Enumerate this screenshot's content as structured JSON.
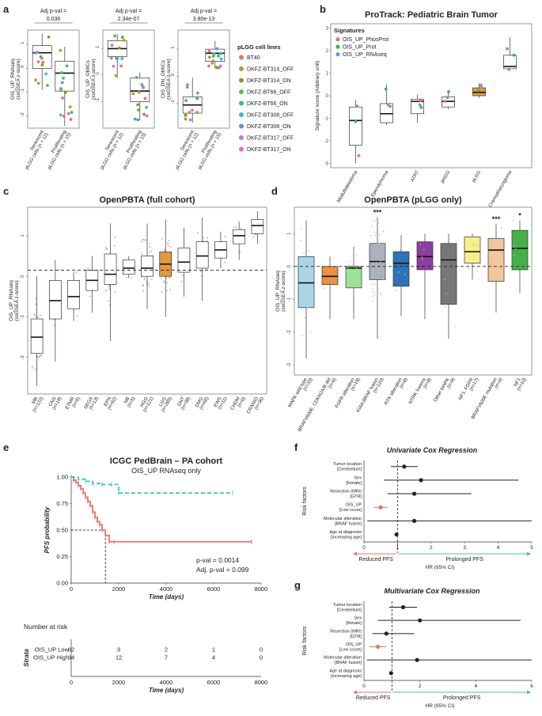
{
  "panels": {
    "a": {
      "label": "a"
    },
    "b": {
      "label": "b"
    },
    "c": {
      "label": "c"
    },
    "d": {
      "label": "d"
    },
    "e": {
      "label": "e"
    },
    "f": {
      "label": "f"
    },
    "g": {
      "label": "g"
    }
  },
  "colors": {
    "cell_lines": [
      "#e8736b",
      "#b59b2a",
      "#8a9b1e",
      "#4dc34a",
      "#35b78a",
      "#3fb7d6",
      "#5f8fe6",
      "#b97ad8",
      "#e468c6"
    ],
    "prot": [
      "#e8736b",
      "#35b74a",
      "#6b93e8"
    ],
    "km_low": "#e8736b",
    "km_high": "#41c2b7",
    "pfs_reduced": "#e8736b",
    "pfs_prolonged": "#41c2b7",
    "d_boxes": [
      "#a9d6e6",
      "#ed8f3e",
      "#9ee29a",
      "#a9b2bc",
      "#2f73b7",
      "#8b3f9e",
      "#777777",
      "#f4f08a",
      "#f2c59a",
      "#46b048"
    ]
  },
  "chart_data": [
    {
      "panel": "a",
      "type": "box",
      "subplots": [
        {
          "pval_label": "Adj p-val =",
          "pval": "0.036",
          "ylabel": "OIS_UP_RNAseq\n(ssGSEA z-score)",
          "yticks": [
            "-2",
            "-1",
            "0",
            "1"
          ],
          "ylim": [
            -2.5,
            1.6
          ],
          "groups": [
            {
              "label": "Senescent\npLGG cells (n = 12)",
              "q1": 0.0,
              "median": 0.65,
              "q3": 0.95,
              "min": -0.9,
              "max": 1.45
            },
            {
              "label": "Proliferating\npLGG cells (n = 15)",
              "q1": -0.95,
              "median": -0.2,
              "q3": 0.3,
              "min": -2.4,
              "max": 0.9
            }
          ]
        },
        {
          "pval_label": "Adj p-val =",
          "pval": "2.34e-07",
          "ylabel": "OIS_UP_OMICs\n(ssGSEA z-score)",
          "yticks": [
            "-1",
            "0",
            "1"
          ],
          "ylim": [
            -2.0,
            1.7
          ],
          "groups": [
            {
              "label": "Senescent\npLGG cells (n = 12)",
              "q1": 0.7,
              "median": 1.0,
              "q3": 1.3,
              "min": -0.1,
              "max": 1.55
            },
            {
              "label": "Proliferating\npLGG cells (n = 15)",
              "q1": -1.0,
              "median": -0.6,
              "q3": -0.1,
              "min": -1.7,
              "max": 0.1
            }
          ]
        },
        {
          "pval_label": "Adj p-val =",
          "pval": "3.80e-13",
          "ylabel": "OIS_DN_OMICs\n(ssGSEA z-score)",
          "yticks": [
            "-1",
            "0",
            "1"
          ],
          "ylim": [
            -1.9,
            1.7
          ],
          "groups": [
            {
              "label": "Senescent\npLGG cells (n = 12)",
              "q1": -1.35,
              "median": -1.05,
              "q3": -0.75,
              "min": -1.7,
              "max": -0.05
            },
            {
              "label": "Proliferating\npLGG cells (n = 15)",
              "q1": 0.55,
              "median": 0.85,
              "q3": 1.0,
              "min": 0.3,
              "max": 1.3
            }
          ]
        }
      ],
      "legend": {
        "title": "pLGG cell lines",
        "entries": [
          "BT40",
          "DKFZ-BT314_OFF",
          "DKFZ-BT314_ON",
          "DKFZ-BT66_OFF",
          "DKFZ-BT66_ON",
          "DKFZ-BT308_OFF",
          "DKFZ-BT308_ON",
          "DKFZ-BT317_OFF",
          "DKFZ-BT317_ON"
        ]
      }
    },
    {
      "panel": "b",
      "type": "box",
      "title": "ProTrack: Pediatric Brain Tumor",
      "ylabel": "Signature score (Arbitrary unit)",
      "yticks": [
        "-3",
        "-2",
        "-1",
        "0",
        "1",
        "2",
        "3"
      ],
      "ylim": [
        -3.2,
        3.2
      ],
      "legend": {
        "title": "Signatures",
        "entries": [
          "OIS_UP_PhosProt",
          "OIS_UP_Prot",
          "OIS_UP_RNAseq"
        ]
      },
      "groups": [
        {
          "label": "Medulloblastoma",
          "q1": -2.2,
          "median": -1.1,
          "q3": -0.5,
          "min": -3.0,
          "max": -0.2
        },
        {
          "label": "Ependymoma",
          "q1": -1.2,
          "median": -0.8,
          "q3": -0.35,
          "min": -1.3,
          "max": 0.5
        },
        {
          "label": "ATRT",
          "q1": -0.8,
          "median": -0.25,
          "q3": -0.15,
          "min": -1.2,
          "max": 0.05
        },
        {
          "label": "pHGG",
          "q1": -0.5,
          "median": -0.25,
          "q3": -0.05,
          "min": -0.6,
          "max": 0.2
        },
        {
          "label": "pLGG",
          "q1": 0.0,
          "median": 0.15,
          "q3": 0.35,
          "min": -0.1,
          "max": 0.55
        },
        {
          "label": "Craniopharyngioma",
          "q1": 1.2,
          "median": 1.3,
          "q3": 1.8,
          "min": 1.1,
          "max": 2.6
        }
      ]
    },
    {
      "panel": "c",
      "type": "box",
      "title": "OpenPBTA (full cohort)",
      "ylabel": "OIS_UP_RNAseq\n(ssGSEA z-score)",
      "yticks": [
        "-2",
        "-1",
        "0",
        "1"
      ],
      "ylim": [
        -2.9,
        1.7
      ],
      "ref_line": 0.15,
      "groups": [
        {
          "label": "MB",
          "n": "(n=122)",
          "q1": -1.9,
          "median": -1.5,
          "q3": -1.05,
          "min": -2.7,
          "max": 0.0,
          "color": "#ffffff"
        },
        {
          "label": "CNS",
          "n": "(n=18)",
          "q1": -1.05,
          "median": -0.6,
          "q3": -0.1,
          "min": -2.1,
          "max": 0.4,
          "color": "#ffffff"
        },
        {
          "label": "ETMR",
          "n": "(n=6)",
          "q1": -0.8,
          "median": -0.5,
          "q3": -0.1,
          "min": -1.1,
          "max": 0.1,
          "color": "#ffffff"
        },
        {
          "label": "SEGA",
          "n": "(n=13)",
          "q1": -0.35,
          "median": -0.1,
          "q3": 0.15,
          "min": -0.9,
          "max": 0.5,
          "color": "#ffffff"
        },
        {
          "label": "EPN",
          "n": "(n=92)",
          "q1": -0.2,
          "median": 0.05,
          "q3": 0.55,
          "min": -1.6,
          "max": 1.3,
          "color": "#ffffff"
        },
        {
          "label": "NB",
          "n": "(n=5)",
          "q1": 0.05,
          "median": 0.2,
          "q3": 0.4,
          "min": -0.05,
          "max": 0.5,
          "color": "#ffffff"
        },
        {
          "label": "HGG",
          "n": "(n=121)",
          "q1": 0.0,
          "median": 0.2,
          "q3": 0.5,
          "min": -0.8,
          "max": 1.3,
          "color": "#ffffff"
        },
        {
          "label": "LGG",
          "n": "(n=285)",
          "q1": 0.0,
          "median": 0.3,
          "q3": 0.6,
          "min": -1.0,
          "max": 1.4,
          "color": "#e39a3a"
        },
        {
          "label": "GNT",
          "n": "(n=38)",
          "q1": 0.1,
          "median": 0.35,
          "q3": 0.7,
          "min": -0.5,
          "max": 1.2,
          "color": "#ffffff"
        },
        {
          "label": "DMG",
          "n": "(n=66)",
          "q1": 0.2,
          "median": 0.5,
          "q3": 0.85,
          "min": -0.6,
          "max": 1.45,
          "color": "#ffffff"
        },
        {
          "label": "EWS",
          "n": "(n=11)",
          "q1": 0.45,
          "median": 0.65,
          "q3": 0.85,
          "min": 0.2,
          "max": 1.1,
          "color": "#ffffff"
        },
        {
          "label": "CHDM",
          "n": "(n=6)",
          "q1": 0.8,
          "median": 1.0,
          "q3": 1.15,
          "min": 0.4,
          "max": 1.35,
          "color": "#ffffff"
        },
        {
          "label": "CRANIO",
          "n": "(n=36)",
          "q1": 1.05,
          "median": 1.25,
          "q3": 1.4,
          "min": 0.8,
          "max": 1.6,
          "color": "#ffffff"
        }
      ]
    },
    {
      "panel": "d",
      "type": "box",
      "title": "OpenPBTA (pLGG only)",
      "ylabel": "OIS_UP_RNAseq\n(ssGSEA z-score)",
      "yticks": [
        "-3",
        "-2",
        "-1",
        "0",
        "1"
      ],
      "ylim": [
        -3.3,
        1.8
      ],
      "ref_line": 0.0,
      "groups": [
        {
          "label": "MAPK wild type",
          "n": "(n=33)",
          "q1": -1.25,
          "median": -0.5,
          "q3": 0.3,
          "min": -2.8,
          "max": 1.4,
          "sig": ""
        },
        {
          "label": "BRAFV600E, CDKN2A/B del",
          "n": "(n=6)",
          "q1": -0.55,
          "median": -0.3,
          "q3": 0.0,
          "min": -1.6,
          "max": 0.3,
          "sig": ""
        },
        {
          "label": "FGFR alteration",
          "n": "(n=19)",
          "q1": -0.65,
          "median": -0.05,
          "q3": 0.0,
          "min": -1.6,
          "max": 0.6,
          "sig": ""
        },
        {
          "label": "KIAA:BRAF fusion",
          "n": "(n=120)",
          "q1": -0.4,
          "median": 0.15,
          "q3": 0.7,
          "min": -2.2,
          "max": 1.5,
          "sig": "***"
        },
        {
          "label": "RTK alteration",
          "n": "(n=8)",
          "q1": -0.6,
          "median": 0.1,
          "q3": 0.45,
          "min": -1.5,
          "max": 0.95,
          "sig": ""
        },
        {
          "label": "NTRK fusions",
          "n": "(n=8)",
          "q1": -0.1,
          "median": 0.3,
          "q3": 0.75,
          "min": -1.6,
          "max": 1.0,
          "sig": ""
        },
        {
          "label": "Other MAPK",
          "n": "(n=9)",
          "q1": -1.15,
          "median": 0.2,
          "q3": 0.7,
          "min": -2.2,
          "max": 1.0,
          "sig": ""
        },
        {
          "label": "NF1, FGFR",
          "n": "(n=17)",
          "q1": 0.1,
          "median": 0.45,
          "q3": 0.9,
          "min": -0.4,
          "max": 1.0,
          "sig": ""
        },
        {
          "label": "BRAFV600E mutation",
          "n": "(n=4)",
          "q1": -0.45,
          "median": 0.5,
          "q3": 0.85,
          "min": -1.4,
          "max": 1.3,
          "sig": "***"
        },
        {
          "label": "NF1",
          "n": "(n=10)",
          "q1": -0.1,
          "median": 0.55,
          "q3": 1.1,
          "min": -0.8,
          "max": 1.4,
          "sig": "*"
        }
      ]
    },
    {
      "panel": "e",
      "type": "line",
      "title": "ICGC PedBrain – PA cohort",
      "subtitle": "OIS_UP RNAseq only",
      "ylabel": "PFS probability",
      "xlabel": "Time (days)",
      "xticks": [
        "0",
        "2000",
        "4000",
        "6000",
        "8000"
      ],
      "xlim": [
        0,
        8000
      ],
      "yticks": [
        "0.00",
        "0.25",
        "0.50",
        "0.75",
        "1.00"
      ],
      "ylim": [
        0,
        1.0
      ],
      "annotation_pval": "p-val = 0.0014",
      "annotation_adj": "Adj. p-val = 0.099",
      "median_line_x": 1440,
      "series": [
        {
          "name": "OIS_UP Low",
          "x": [
            0,
            100,
            200,
            300,
            400,
            500,
            600,
            700,
            800,
            900,
            1000,
            1100,
            1200,
            1300,
            1440,
            1600,
            1800,
            7600
          ],
          "y": [
            1.0,
            0.97,
            0.95,
            0.92,
            0.89,
            0.85,
            0.81,
            0.77,
            0.73,
            0.67,
            0.62,
            0.58,
            0.55,
            0.5,
            0.45,
            0.39,
            0.39,
            0.39
          ]
        },
        {
          "name": "OIS_UP High",
          "x": [
            0,
            300,
            600,
            900,
            1300,
            1700,
            2000,
            6800
          ],
          "y": [
            1.0,
            0.98,
            0.96,
            0.94,
            0.93,
            0.93,
            0.85,
            0.85
          ]
        }
      ],
      "risk_table": {
        "title": "Number at risk",
        "strata_label": "Strata",
        "xlabel": "Time (days)",
        "rows": [
          {
            "name": "OIS_UP Low",
            "values": [
              "62",
              "3",
              "2",
              "1",
              "0"
            ]
          },
          {
            "name": "OIS_UP High",
            "values": [
              "34",
              "12",
              "7",
              "4",
              "0"
            ]
          }
        ]
      }
    },
    {
      "panel": "f",
      "type": "forest",
      "title": "Univariate Cox Regression",
      "ylabel": "Risk factors",
      "xlabel": "HR (95% CI)",
      "xticks": [
        "0",
        "1",
        "2",
        "3",
        "4",
        "5"
      ],
      "xlim": [
        0,
        5
      ],
      "reduced_label": "Reduced PFS",
      "prolonged_label": "Prolonged PFS",
      "factors": [
        {
          "name": "Tumor location",
          "sub": "[Cerebellum]",
          "hr": 1.2,
          "lo": 0.8,
          "hi": 1.6,
          "highlight": false
        },
        {
          "name": "Sex",
          "sub": "[female]",
          "hr": 1.7,
          "lo": 0.6,
          "hi": 4.6,
          "highlight": false
        },
        {
          "name": "Resection (MRI)",
          "sub": "[GTR]",
          "hr": 1.5,
          "lo": 0.7,
          "hi": 3.2,
          "highlight": false
        },
        {
          "name": "OIS_UP",
          "sub": "[Low score]",
          "hr": 0.5,
          "lo": 0.3,
          "hi": 0.7,
          "highlight": true
        },
        {
          "name": "Molecular alteration",
          "sub": "[BRAF fusion]",
          "hr": 1.5,
          "lo": 0.1,
          "hi": 5.0,
          "highlight": false
        },
        {
          "name": "Age at diagnosis",
          "sub": "[increasing age]",
          "hr": 0.97,
          "lo": 0.92,
          "hi": 1.02,
          "highlight": false
        }
      ]
    },
    {
      "panel": "g",
      "type": "forest",
      "title": "Multivariate Cox Regression",
      "ylabel": "Risk factors",
      "xlabel": "HR (95% CI)",
      "xticks": [
        "0",
        "2",
        "4",
        "6"
      ],
      "xlim": [
        0,
        6
      ],
      "reduced_label": "Reduced PFS",
      "prolonged_label": "Prolonged PFS",
      "factors": [
        {
          "name": "Tumor location",
          "sub": "[Cerebellum]",
          "hr": 1.4,
          "lo": 0.9,
          "hi": 1.9,
          "highlight": false
        },
        {
          "name": "Sex",
          "sub": "[female]",
          "hr": 2.0,
          "lo": 0.5,
          "hi": 5.6,
          "highlight": false
        },
        {
          "name": "Resection (MRI)",
          "sub": "[GTR]",
          "hr": 0.8,
          "lo": 0.3,
          "hi": 1.8,
          "highlight": false
        },
        {
          "name": "OIS_UP",
          "sub": "[Low score]",
          "hr": 0.5,
          "lo": 0.2,
          "hi": 0.8,
          "highlight": true
        },
        {
          "name": "Molecular alteration",
          "sub": "[BRAF fusion]",
          "hr": 1.9,
          "lo": 0.1,
          "hi": 6.0,
          "highlight": false
        },
        {
          "name": "Age at diagnosis",
          "sub": "[increasing age]",
          "hr": 0.97,
          "lo": 0.9,
          "hi": 1.05,
          "highlight": false
        }
      ]
    }
  ]
}
